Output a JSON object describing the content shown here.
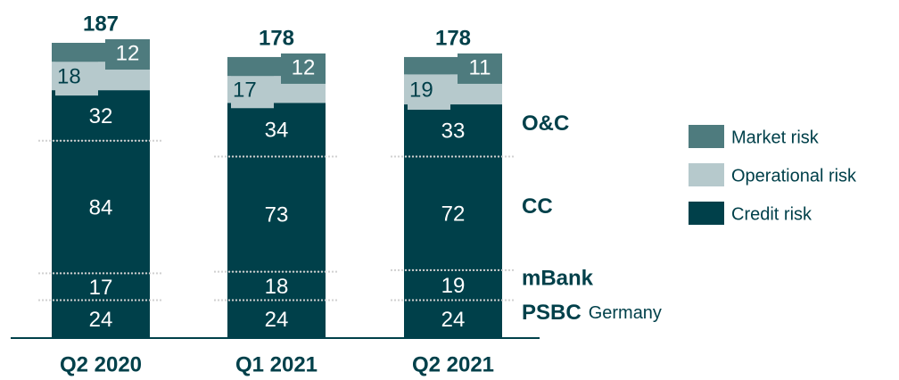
{
  "chart_data": {
    "type": "stacked_bar",
    "categories": [
      "Q2 2020",
      "Q1 2021",
      "Q2 2021"
    ],
    "series": [
      {
        "name": "PSBC",
        "sublabel": "Germany",
        "color": "#00404a",
        "values": [
          24,
          24,
          24
        ]
      },
      {
        "name": "mBank",
        "color": "#00404a",
        "values": [
          17,
          18,
          19
        ]
      },
      {
        "name": "CC",
        "color": "#00404a",
        "values": [
          84,
          73,
          72
        ]
      },
      {
        "name": "O&C",
        "color": "#00404a",
        "values": [
          32,
          34,
          33
        ]
      },
      {
        "name": "Operational risk",
        "color": "#b6c9cc",
        "values": [
          18,
          17,
          19
        ]
      },
      {
        "name": "Market risk",
        "color": "#4e7b7e",
        "values": [
          12,
          12,
          11
        ]
      }
    ],
    "totals": [
      187,
      178,
      178
    ],
    "legend": [
      {
        "name": "Market risk",
        "color": "#4e7b7e"
      },
      {
        "name": "Operational risk",
        "color": "#b6c9cc"
      },
      {
        "name": "Credit risk",
        "color": "#00404a"
      }
    ]
  }
}
